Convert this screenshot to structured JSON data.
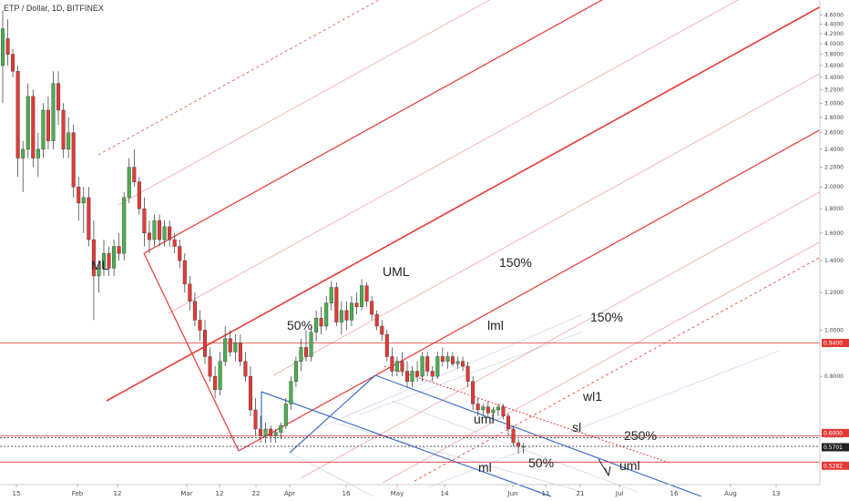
{
  "header": {
    "symbol_line": "ETP / Dollar, 1D, BITFINEX"
  },
  "chart_data": {
    "type": "candlestick",
    "symbol": "ETP / Dollar",
    "interval": "1D",
    "exchange": "BITFINEX",
    "yscale": "log",
    "ylim": [
      0.48,
      4.75
    ],
    "y_ticks": [
      {
        "value": 4.6,
        "label": "4.6000"
      },
      {
        "value": 4.4,
        "label": "4.4000"
      },
      {
        "value": 4.2,
        "label": "4.2000"
      },
      {
        "value": 4.0,
        "label": "4.0000"
      },
      {
        "value": 3.8,
        "label": "3.8000"
      },
      {
        "value": 3.6,
        "label": "3.6000"
      },
      {
        "value": 3.4,
        "label": "3.4000"
      },
      {
        "value": 3.2,
        "label": "3.2000"
      },
      {
        "value": 3.0,
        "label": "3.0000"
      },
      {
        "value": 2.8,
        "label": "2.8000"
      },
      {
        "value": 2.6,
        "label": "2.6000"
      },
      {
        "value": 2.4,
        "label": "2.4000"
      },
      {
        "value": 2.2,
        "label": "2.2000"
      },
      {
        "value": 2.0,
        "label": "2.0000"
      },
      {
        "value": 1.8,
        "label": "1.8000"
      },
      {
        "value": 1.6,
        "label": "1.6000"
      },
      {
        "value": 1.4,
        "label": "1.4000"
      },
      {
        "value": 1.2,
        "label": "1.2000"
      },
      {
        "value": 1.0,
        "label": "1.0000"
      },
      {
        "value": 0.8,
        "label": "0.8000"
      },
      {
        "value": 0.6,
        "label": "0.6000"
      }
    ],
    "x_ticks": [
      "15",
      "Feb",
      "12",
      "Mar",
      "12",
      "22",
      "Apr",
      "16",
      "May",
      "14",
      "Jun",
      "11",
      "21",
      "Jul",
      "16",
      "Aug",
      "13"
    ],
    "price_tags": [
      {
        "value": 0.94,
        "label": "0.9400",
        "color": "#e53935"
      },
      {
        "value": 0.6,
        "label": "0.6000",
        "color": "#e53935"
      },
      {
        "value": 0.5701,
        "label": "0.5701",
        "color": "#222222"
      },
      {
        "value": 0.5282,
        "label": "0.5282",
        "color": "#e53935"
      }
    ],
    "horizontal_levels": [
      0.94,
      0.6,
      0.5701,
      0.5282
    ],
    "candles": [
      {
        "o": 3.6,
        "h": 4.7,
        "l": 3.0,
        "c": 4.3
      },
      {
        "o": 4.1,
        "h": 4.5,
        "l": 3.6,
        "c": 3.8
      },
      {
        "o": 3.8,
        "h": 3.9,
        "l": 3.4,
        "c": 3.5
      },
      {
        "o": 3.5,
        "h": 3.6,
        "l": 2.1,
        "c": 2.3
      },
      {
        "o": 2.3,
        "h": 2.5,
        "l": 1.95,
        "c": 2.4
      },
      {
        "o": 2.4,
        "h": 3.3,
        "l": 2.3,
        "c": 3.1
      },
      {
        "o": 3.1,
        "h": 3.2,
        "l": 2.2,
        "c": 2.3
      },
      {
        "o": 2.3,
        "h": 2.6,
        "l": 2.1,
        "c": 2.4
      },
      {
        "o": 2.4,
        "h": 3.0,
        "l": 2.3,
        "c": 2.9
      },
      {
        "o": 2.9,
        "h": 3.1,
        "l": 2.4,
        "c": 2.5
      },
      {
        "o": 2.5,
        "h": 3.5,
        "l": 2.4,
        "c": 3.3
      },
      {
        "o": 3.3,
        "h": 3.5,
        "l": 2.7,
        "c": 2.9
      },
      {
        "o": 2.9,
        "h": 3.0,
        "l": 2.3,
        "c": 2.4
      },
      {
        "o": 2.4,
        "h": 2.8,
        "l": 2.3,
        "c": 2.6
      },
      {
        "o": 2.6,
        "h": 2.7,
        "l": 1.9,
        "c": 2.0
      },
      {
        "o": 2.0,
        "h": 2.1,
        "l": 1.7,
        "c": 1.85
      },
      {
        "o": 1.85,
        "h": 2.0,
        "l": 1.6,
        "c": 1.9
      },
      {
        "o": 1.9,
        "h": 2.0,
        "l": 1.5,
        "c": 1.55
      },
      {
        "o": 1.55,
        "h": 1.7,
        "l": 1.05,
        "c": 1.3
      },
      {
        "o": 1.3,
        "h": 1.4,
        "l": 1.2,
        "c": 1.35
      },
      {
        "o": 1.35,
        "h": 1.55,
        "l": 1.3,
        "c": 1.45
      },
      {
        "o": 1.45,
        "h": 1.5,
        "l": 1.3,
        "c": 1.35
      },
      {
        "o": 1.35,
        "h": 1.55,
        "l": 1.3,
        "c": 1.5
      },
      {
        "o": 1.5,
        "h": 1.6,
        "l": 1.4,
        "c": 1.45
      },
      {
        "o": 1.45,
        "h": 1.95,
        "l": 1.4,
        "c": 1.9
      },
      {
        "o": 1.9,
        "h": 2.3,
        "l": 1.85,
        "c": 2.2
      },
      {
        "o": 2.2,
        "h": 2.4,
        "l": 2.0,
        "c": 2.05
      },
      {
        "o": 2.05,
        "h": 2.1,
        "l": 1.75,
        "c": 1.8
      },
      {
        "o": 1.8,
        "h": 1.9,
        "l": 1.5,
        "c": 1.6
      },
      {
        "o": 1.6,
        "h": 1.7,
        "l": 1.45,
        "c": 1.55
      },
      {
        "o": 1.55,
        "h": 1.75,
        "l": 1.5,
        "c": 1.7
      },
      {
        "o": 1.7,
        "h": 1.75,
        "l": 1.5,
        "c": 1.55
      },
      {
        "o": 1.55,
        "h": 1.7,
        "l": 1.5,
        "c": 1.65
      },
      {
        "o": 1.65,
        "h": 1.7,
        "l": 1.5,
        "c": 1.55
      },
      {
        "o": 1.55,
        "h": 1.6,
        "l": 1.45,
        "c": 1.5
      },
      {
        "o": 1.5,
        "h": 1.55,
        "l": 1.35,
        "c": 1.4
      },
      {
        "o": 1.4,
        "h": 1.45,
        "l": 1.2,
        "c": 1.25
      },
      {
        "o": 1.25,
        "h": 1.3,
        "l": 1.1,
        "c": 1.15
      },
      {
        "o": 1.15,
        "h": 1.2,
        "l": 1.02,
        "c": 1.05
      },
      {
        "o": 1.05,
        "h": 1.1,
        "l": 0.95,
        "c": 1.0
      },
      {
        "o": 1.0,
        "h": 1.05,
        "l": 0.85,
        "c": 0.88
      },
      {
        "o": 0.88,
        "h": 0.92,
        "l": 0.78,
        "c": 0.8
      },
      {
        "o": 0.8,
        "h": 0.84,
        "l": 0.72,
        "c": 0.75
      },
      {
        "o": 0.75,
        "h": 0.9,
        "l": 0.73,
        "c": 0.86
      },
      {
        "o": 0.86,
        "h": 1.02,
        "l": 0.84,
        "c": 0.96
      },
      {
        "o": 0.96,
        "h": 1.0,
        "l": 0.88,
        "c": 0.9
      },
      {
        "o": 0.9,
        "h": 0.98,
        "l": 0.86,
        "c": 0.94
      },
      {
        "o": 0.94,
        "h": 0.98,
        "l": 0.84,
        "c": 0.86
      },
      {
        "o": 0.86,
        "h": 0.9,
        "l": 0.78,
        "c": 0.8
      },
      {
        "o": 0.8,
        "h": 0.84,
        "l": 0.66,
        "c": 0.68
      },
      {
        "o": 0.68,
        "h": 0.72,
        "l": 0.6,
        "c": 0.62
      },
      {
        "o": 0.62,
        "h": 0.66,
        "l": 0.58,
        "c": 0.6
      },
      {
        "o": 0.6,
        "h": 0.64,
        "l": 0.58,
        "c": 0.62
      },
      {
        "o": 0.62,
        "h": 0.63,
        "l": 0.58,
        "c": 0.6
      },
      {
        "o": 0.6,
        "h": 0.62,
        "l": 0.58,
        "c": 0.61
      },
      {
        "o": 0.61,
        "h": 0.64,
        "l": 0.59,
        "c": 0.63
      },
      {
        "o": 0.63,
        "h": 0.72,
        "l": 0.62,
        "c": 0.7
      },
      {
        "o": 0.7,
        "h": 0.8,
        "l": 0.68,
        "c": 0.78
      },
      {
        "o": 0.78,
        "h": 0.88,
        "l": 0.76,
        "c": 0.86
      },
      {
        "o": 0.86,
        "h": 0.96,
        "l": 0.82,
        "c": 0.92
      },
      {
        "o": 0.92,
        "h": 1.0,
        "l": 0.86,
        "c": 0.88
      },
      {
        "o": 0.88,
        "h": 1.02,
        "l": 0.86,
        "c": 0.99
      },
      {
        "o": 0.99,
        "h": 1.1,
        "l": 0.95,
        "c": 1.06
      },
      {
        "o": 1.06,
        "h": 1.12,
        "l": 0.98,
        "c": 1.02
      },
      {
        "o": 1.02,
        "h": 1.18,
        "l": 1.0,
        "c": 1.14
      },
      {
        "o": 1.14,
        "h": 1.27,
        "l": 1.1,
        "c": 1.23
      },
      {
        "o": 1.23,
        "h": 1.26,
        "l": 1.02,
        "c": 1.04
      },
      {
        "o": 1.04,
        "h": 1.15,
        "l": 0.98,
        "c": 1.1
      },
      {
        "o": 1.1,
        "h": 1.15,
        "l": 1.0,
        "c": 1.05
      },
      {
        "o": 1.05,
        "h": 1.18,
        "l": 1.02,
        "c": 1.14
      },
      {
        "o": 1.14,
        "h": 1.2,
        "l": 1.08,
        "c": 1.12
      },
      {
        "o": 1.12,
        "h": 1.28,
        "l": 1.1,
        "c": 1.24
      },
      {
        "o": 1.24,
        "h": 1.26,
        "l": 1.12,
        "c": 1.15
      },
      {
        "o": 1.15,
        "h": 1.18,
        "l": 1.05,
        "c": 1.08
      },
      {
        "o": 1.08,
        "h": 1.1,
        "l": 1.0,
        "c": 1.02
      },
      {
        "o": 1.02,
        "h": 1.05,
        "l": 0.95,
        "c": 0.98
      },
      {
        "o": 0.98,
        "h": 1.0,
        "l": 0.86,
        "c": 0.88
      },
      {
        "o": 0.88,
        "h": 0.92,
        "l": 0.8,
        "c": 0.82
      },
      {
        "o": 0.82,
        "h": 0.88,
        "l": 0.8,
        "c": 0.86
      },
      {
        "o": 0.86,
        "h": 0.9,
        "l": 0.8,
        "c": 0.82
      },
      {
        "o": 0.82,
        "h": 0.86,
        "l": 0.76,
        "c": 0.78
      },
      {
        "o": 0.78,
        "h": 0.84,
        "l": 0.76,
        "c": 0.82
      },
      {
        "o": 0.82,
        "h": 0.86,
        "l": 0.78,
        "c": 0.8
      },
      {
        "o": 0.8,
        "h": 0.9,
        "l": 0.78,
        "c": 0.88
      },
      {
        "o": 0.88,
        "h": 0.9,
        "l": 0.8,
        "c": 0.82
      },
      {
        "o": 0.82,
        "h": 0.84,
        "l": 0.78,
        "c": 0.8
      },
      {
        "o": 0.8,
        "h": 0.9,
        "l": 0.79,
        "c": 0.88
      },
      {
        "o": 0.88,
        "h": 0.92,
        "l": 0.84,
        "c": 0.86
      },
      {
        "o": 0.86,
        "h": 0.9,
        "l": 0.83,
        "c": 0.88
      },
      {
        "o": 0.88,
        "h": 0.9,
        "l": 0.84,
        "c": 0.85
      },
      {
        "o": 0.85,
        "h": 0.88,
        "l": 0.83,
        "c": 0.86
      },
      {
        "o": 0.86,
        "h": 0.88,
        "l": 0.82,
        "c": 0.84
      },
      {
        "o": 0.84,
        "h": 0.86,
        "l": 0.76,
        "c": 0.78
      },
      {
        "o": 0.78,
        "h": 0.8,
        "l": 0.68,
        "c": 0.7
      },
      {
        "o": 0.7,
        "h": 0.72,
        "l": 0.66,
        "c": 0.68
      },
      {
        "o": 0.68,
        "h": 0.7,
        "l": 0.66,
        "c": 0.69
      },
      {
        "o": 0.69,
        "h": 0.71,
        "l": 0.66,
        "c": 0.67
      },
      {
        "o": 0.67,
        "h": 0.69,
        "l": 0.65,
        "c": 0.68
      },
      {
        "o": 0.68,
        "h": 0.7,
        "l": 0.66,
        "c": 0.69
      },
      {
        "o": 0.69,
        "h": 0.7,
        "l": 0.65,
        "c": 0.66
      },
      {
        "o": 0.66,
        "h": 0.67,
        "l": 0.6,
        "c": 0.62
      },
      {
        "o": 0.62,
        "h": 0.63,
        "l": 0.57,
        "c": 0.58
      },
      {
        "o": 0.58,
        "h": 0.59,
        "l": 0.55,
        "c": 0.57
      },
      {
        "o": 0.57,
        "h": 0.58,
        "l": 0.55,
        "c": 0.5701
      }
    ],
    "annotations": [
      "ML",
      "UML",
      "50%",
      "150%",
      "lml",
      "150%",
      "wl1",
      "uml",
      "sl",
      "250%",
      "ml",
      "50%",
      "uml"
    ],
    "colors": {
      "up": "#26a69a",
      "down": "#ef5350",
      "bull_body": "#4caf50",
      "bear_body": "#e53935",
      "pitchfork_red": "#e53935",
      "pitchfork_blue": "#3f6fc4",
      "level_black": "#222222"
    }
  }
}
